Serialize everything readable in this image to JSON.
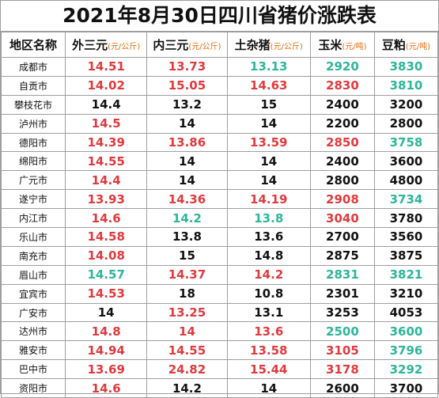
{
  "title": "2021年8月30日四川省猪价涨跌表",
  "headers": [
    {
      "label": "地区名称",
      "unit": ""
    },
    {
      "label": "外三元",
      "unit": "(元/公斤)"
    },
    {
      "label": "内三元",
      "unit": "(元/公斤)"
    },
    {
      "label": "土杂猪",
      "unit": "(元/公斤)"
    },
    {
      "label": "玉米",
      "unit": "(元/吨)"
    },
    {
      "label": "豆粕",
      "unit": "(元/吨)"
    }
  ],
  "colors": {
    "up": "#e03a3e",
    "down": "#2db59a",
    "flat": "#111111"
  },
  "rows": [
    {
      "city": "成都市",
      "values": [
        "14.51",
        "13.73",
        "13.13",
        "2920",
        "3830"
      ],
      "trend": [
        "up",
        "up",
        "down",
        "down",
        "down"
      ]
    },
    {
      "city": "自贡市",
      "values": [
        "14.02",
        "15.05",
        "14.63",
        "2830",
        "3810"
      ],
      "trend": [
        "up",
        "up",
        "up",
        "up",
        "down"
      ]
    },
    {
      "city": "攀枝花市",
      "values": [
        "14.4",
        "13.2",
        "15",
        "2400",
        "3200"
      ],
      "trend": [
        "flat",
        "flat",
        "flat",
        "flat",
        "flat"
      ]
    },
    {
      "city": "泸州市",
      "values": [
        "14.5",
        "14",
        "14",
        "2200",
        "2800"
      ],
      "trend": [
        "up",
        "flat",
        "flat",
        "flat",
        "flat"
      ]
    },
    {
      "city": "德阳市",
      "values": [
        "14.39",
        "13.86",
        "13.59",
        "2850",
        "3758"
      ],
      "trend": [
        "up",
        "up",
        "up",
        "up",
        "down"
      ]
    },
    {
      "city": "绵阳市",
      "values": [
        "14.55",
        "14",
        "14",
        "2400",
        "3600"
      ],
      "trend": [
        "up",
        "flat",
        "flat",
        "flat",
        "flat"
      ]
    },
    {
      "city": "广元市",
      "values": [
        "14.4",
        "14",
        "14",
        "2800",
        "4800"
      ],
      "trend": [
        "up",
        "flat",
        "flat",
        "flat",
        "flat"
      ]
    },
    {
      "city": "遂宁市",
      "values": [
        "13.93",
        "14.36",
        "14.19",
        "2908",
        "3734"
      ],
      "trend": [
        "up",
        "up",
        "up",
        "up",
        "down"
      ]
    },
    {
      "city": "内江市",
      "values": [
        "14.6",
        "14.2",
        "13.8",
        "3040",
        "3780"
      ],
      "trend": [
        "up",
        "down",
        "down",
        "up",
        "flat"
      ]
    },
    {
      "city": "乐山市",
      "values": [
        "14.58",
        "13.8",
        "13.6",
        "2700",
        "3560"
      ],
      "trend": [
        "up",
        "flat",
        "flat",
        "flat",
        "flat"
      ]
    },
    {
      "city": "南充市",
      "values": [
        "14.08",
        "15",
        "14.8",
        "2875",
        "3875"
      ],
      "trend": [
        "up",
        "flat",
        "flat",
        "flat",
        "flat"
      ]
    },
    {
      "city": "眉山市",
      "values": [
        "14.57",
        "14.37",
        "14.2",
        "2831",
        "3821"
      ],
      "trend": [
        "down",
        "up",
        "up",
        "down",
        "down"
      ]
    },
    {
      "city": "宜宾市",
      "values": [
        "14.53",
        "18",
        "10.8",
        "2301",
        "3210"
      ],
      "trend": [
        "up",
        "flat",
        "flat",
        "flat",
        "flat"
      ]
    },
    {
      "city": "广安市",
      "values": [
        "14",
        "13.25",
        "13.1",
        "3253",
        "4053"
      ],
      "trend": [
        "flat",
        "up",
        "flat",
        "flat",
        "flat"
      ]
    },
    {
      "city": "达州市",
      "values": [
        "14.8",
        "14",
        "13.6",
        "2500",
        "3600"
      ],
      "trend": [
        "up",
        "up",
        "up",
        "down",
        "down"
      ]
    },
    {
      "city": "雅安市",
      "values": [
        "14.94",
        "14.55",
        "13.58",
        "3105",
        "3796"
      ],
      "trend": [
        "up",
        "up",
        "up",
        "up",
        "down"
      ]
    },
    {
      "city": "巴中市",
      "values": [
        "13.69",
        "24.82",
        "15.44",
        "3178",
        "3292"
      ],
      "trend": [
        "up",
        "up",
        "up",
        "up",
        "down"
      ]
    },
    {
      "city": "资阳市",
      "values": [
        "14.6",
        "14.2",
        "14",
        "2600",
        "3700"
      ],
      "trend": [
        "up",
        "flat",
        "flat",
        "flat",
        "flat"
      ]
    }
  ]
}
